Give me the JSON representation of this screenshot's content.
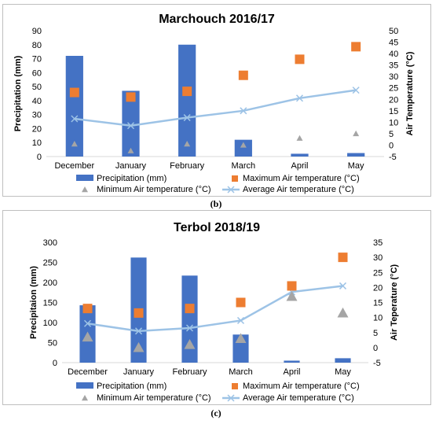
{
  "colors": {
    "precip": "#4472c4",
    "max_temp": "#ed7d31",
    "min_temp": "#a5a5a5",
    "avg_temp": "#9dc3e6"
  },
  "chart_data": [
    {
      "type": "bar",
      "title": "Marchouch 2016/17",
      "caption": "(b)",
      "ylabel": "Precipitation (mm)",
      "y2label": "Air Temperature (°C)",
      "ylim": [
        0,
        90
      ],
      "y2lim": [
        -5,
        50
      ],
      "yticks": [
        "0",
        "10",
        "20",
        "30",
        "40",
        "50",
        "60",
        "70",
        "80",
        "90"
      ],
      "y2ticks": [
        "-5",
        "0",
        "5",
        "10",
        "15",
        "20",
        "25",
        "30",
        "35",
        "40",
        "45",
        "50"
      ],
      "categories": [
        "December",
        "January",
        "February",
        "March",
        "April",
        "May"
      ],
      "series": [
        {
          "name": "Precipitation (mm)",
          "kind": "bar",
          "axis": "left",
          "values": [
            72,
            47,
            80,
            12,
            2,
            2.5
          ]
        },
        {
          "name": "Maximum Air temperature (°C)",
          "kind": "square",
          "axis": "right",
          "values": [
            23,
            21,
            23.5,
            30.5,
            37.5,
            43
          ]
        },
        {
          "name": "Minimum Air temperature (°C)",
          "kind": "triangle",
          "axis": "right",
          "values": [
            0.5,
            -2.5,
            0.5,
            0,
            3,
            5
          ]
        },
        {
          "name": "Average Air temperature (°C)",
          "kind": "line",
          "axis": "right",
          "values": [
            11.5,
            8.5,
            12,
            15,
            20.5,
            24
          ]
        }
      ],
      "legend": "bottom"
    },
    {
      "type": "bar",
      "title": "Terbol 2018/19",
      "caption": "(c)",
      "ylabel": "Precipitaion (mm)",
      "y2label": "Air Teperature (°C)",
      "ylim": [
        0,
        300
      ],
      "y2lim": [
        -5,
        35
      ],
      "yticks": [
        "0",
        "50",
        "100",
        "150",
        "200",
        "250",
        "300"
      ],
      "y2ticks": [
        "-5",
        "0",
        "5",
        "10",
        "15",
        "20",
        "25",
        "30",
        "35"
      ],
      "categories": [
        "December",
        "January",
        "February",
        "March",
        "April",
        "May"
      ],
      "series": [
        {
          "name": "Precipitation (mm)",
          "kind": "bar",
          "axis": "left",
          "values": [
            143,
            262,
            217,
            70,
            5,
            11
          ]
        },
        {
          "name": "Maximum Air temperature (°C)",
          "kind": "square",
          "axis": "right",
          "values": [
            13,
            11.5,
            13,
            15,
            20.5,
            30
          ]
        },
        {
          "name": "Minimum Air temperature (°C)",
          "kind": "triangle",
          "axis": "right",
          "values": [
            3.5,
            0,
            1,
            3,
            17,
            11.5
          ]
        },
        {
          "name": "Average Air temperature (°C)",
          "kind": "line",
          "axis": "right",
          "values": [
            8,
            5.5,
            6.5,
            9,
            18.5,
            20.5
          ]
        }
      ],
      "legend": "bottom"
    }
  ]
}
